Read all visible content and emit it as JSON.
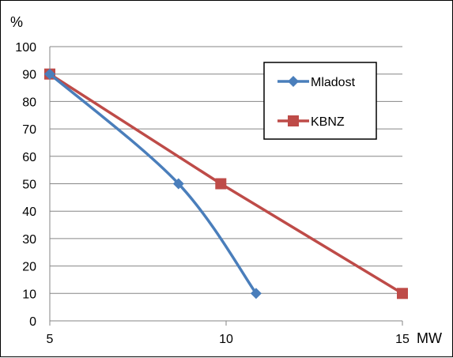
{
  "chart_data": {
    "type": "line",
    "title": "",
    "ylabel": "%",
    "xlabel": "MW",
    "xlim": [
      5,
      15
    ],
    "ylim": [
      0,
      100
    ],
    "x_ticks": [
      "5",
      "10",
      "15"
    ],
    "y_ticks": [
      "0",
      "10",
      "20",
      "30",
      "40",
      "50",
      "60",
      "70",
      "80",
      "90",
      "100"
    ],
    "grid": "horizontal",
    "legend_position": "top-right",
    "series": [
      {
        "name": "Mladost",
        "color": "#4a7ebb",
        "marker": "diamond",
        "smooth": true,
        "x": [
          5,
          8.65,
          10.85
        ],
        "y": [
          90,
          50,
          10
        ]
      },
      {
        "name": "KBNZ",
        "color": "#be4b48",
        "marker": "square",
        "smooth": false,
        "x": [
          5,
          9.85,
          15
        ],
        "y": [
          90,
          50,
          10
        ]
      }
    ]
  }
}
